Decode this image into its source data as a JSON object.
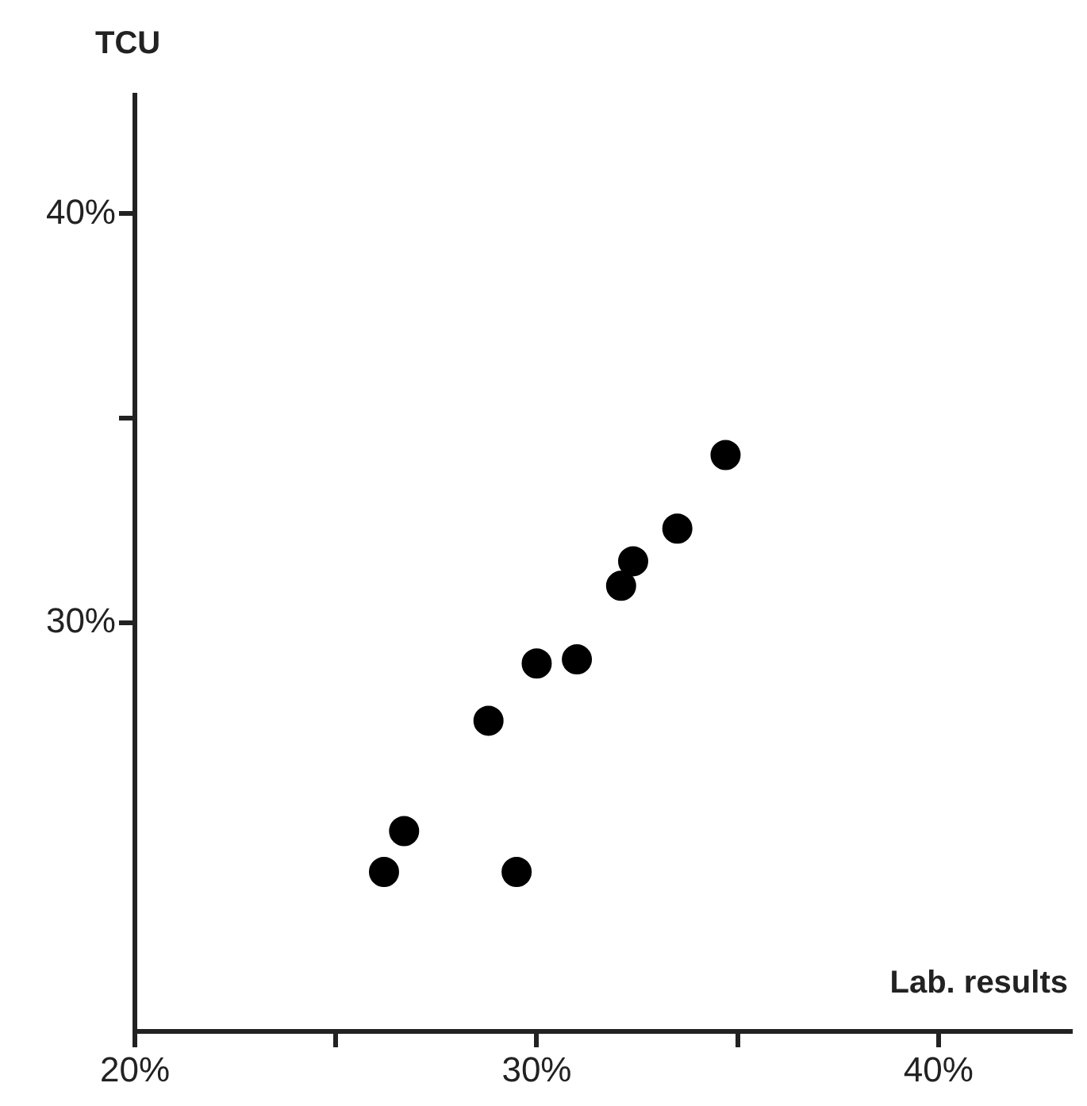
{
  "chart_data": {
    "type": "scatter",
    "xlabel": "Lab. results",
    "ylabel": "TCU",
    "x": [
      26.2,
      26.7,
      28.8,
      29.5,
      30.0,
      31.0,
      32.1,
      32.4,
      33.5,
      34.7
    ],
    "series": [
      {
        "color": "#000000",
        "values": [
          23.9,
          24.9,
          27.6,
          23.9,
          29.0,
          29.1,
          30.9,
          31.5,
          32.3,
          34.1
        ]
      }
    ],
    "xlim": [
      20,
      43.3
    ],
    "ylim": [
      20,
      42.9
    ],
    "xticks": [
      {
        "value": 20,
        "label": "20%"
      },
      {
        "value": 25,
        "label": null
      },
      {
        "value": 30,
        "label": "30%"
      },
      {
        "value": 35,
        "label": null
      },
      {
        "value": 40,
        "label": "40%"
      }
    ],
    "yticks": [
      {
        "value": 30,
        "label": "30%"
      },
      {
        "value": 35,
        "label": null
      },
      {
        "value": 40,
        "label": "40%"
      }
    ],
    "grid": false,
    "legend": false,
    "marker": "circle"
  }
}
